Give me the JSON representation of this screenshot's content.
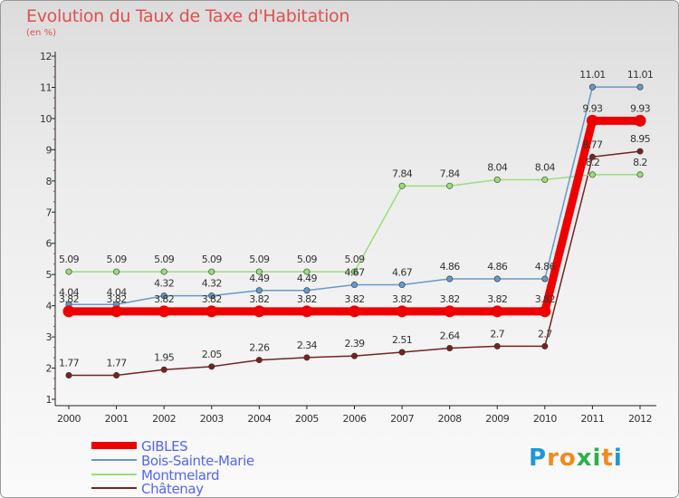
{
  "chart_data": {
    "type": "line",
    "title": "Evolution du Taux de Taxe d'Habitation",
    "subtitle": "(en %)",
    "x": [
      "2000",
      "2001",
      "2002",
      "2003",
      "2004",
      "2005",
      "2006",
      "2007",
      "2008",
      "2009",
      "2010",
      "2011",
      "2012"
    ],
    "ylim": [
      1,
      12
    ],
    "yticks": [
      "1",
      "2",
      "3",
      "4",
      "5",
      "6",
      "7",
      "8",
      "9",
      "10",
      "11",
      "12"
    ],
    "grid": false,
    "legend_position": "bottom-left",
    "series": [
      {
        "name": "GIBLES",
        "color": "#ee0000",
        "values": [
          3.82,
          3.82,
          3.82,
          3.82,
          3.82,
          3.82,
          3.82,
          3.82,
          3.82,
          3.82,
          3.82,
          9.93,
          9.93
        ],
        "labels": [
          "3.82",
          "3.82",
          "3.82",
          "3.82",
          "3.82",
          "3.82",
          "3.82",
          "3.82",
          "3.82",
          "3.82",
          "3.82",
          "9.93",
          "9.93"
        ]
      },
      {
        "name": "Bois-Sainte-Marie",
        "color": "#6699cc",
        "values": [
          4.04,
          4.04,
          4.32,
          4.32,
          4.49,
          4.49,
          4.67,
          4.67,
          4.86,
          4.86,
          4.86,
          11.01,
          11.01
        ],
        "labels": [
          "4.04",
          "4.04",
          "4.32",
          "4.32",
          "4.49",
          "4.49",
          "4.67",
          "4.67",
          "4.86",
          "4.86",
          "4.86",
          "11.01",
          "11.01"
        ]
      },
      {
        "name": "Montmelard",
        "color": "#99dd77",
        "values": [
          5.09,
          5.09,
          5.09,
          5.09,
          5.09,
          5.09,
          5.09,
          7.84,
          7.84,
          8.04,
          8.04,
          8.2,
          8.2
        ],
        "labels": [
          "5.09",
          "5.09",
          "5.09",
          "5.09",
          "5.09",
          "5.09",
          "5.09",
          "7.84",
          "7.84",
          "8.04",
          "8.04",
          "8.2",
          "8.2"
        ]
      },
      {
        "name": "Châtenay",
        "color": "#772222",
        "values": [
          1.77,
          1.77,
          1.95,
          2.05,
          2.26,
          2.34,
          2.39,
          2.51,
          2.64,
          2.7,
          2.7,
          8.77,
          8.95
        ],
        "labels": [
          "1.77",
          "1.77",
          "1.95",
          "2.05",
          "2.26",
          "2.34",
          "2.39",
          "2.51",
          "2.64",
          "2.7",
          "2.7",
          "8.77",
          "8.95"
        ]
      }
    ]
  },
  "logo": {
    "letters": [
      "P",
      "r",
      "o",
      "x",
      "i",
      "t",
      "i"
    ],
    "colors": [
      "#1f97d6",
      "#f28a1a",
      "#f28a1a",
      "#2bb24c",
      "#2bb24c",
      "#f28a1a",
      "#1f97d6"
    ]
  }
}
